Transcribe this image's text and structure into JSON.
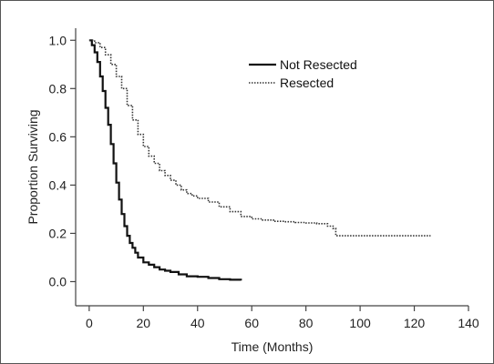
{
  "chart_data": {
    "type": "line",
    "title": "",
    "xlabel": "Time (Months)",
    "ylabel": "Proportion Surviving",
    "xlim": [
      -5,
      140
    ],
    "ylim": [
      -0.1,
      1.05
    ],
    "xticks": [
      0,
      20,
      40,
      60,
      80,
      100,
      120,
      140
    ],
    "yticks": [
      0.0,
      0.2,
      0.4,
      0.6,
      0.8,
      1.0
    ],
    "xtick_labels": [
      "0",
      "20",
      "40",
      "60",
      "80",
      "100",
      "120",
      "140"
    ],
    "ytick_labels": [
      "0.0",
      "0.2",
      "0.4",
      "0.6",
      "0.8",
      "1.0"
    ],
    "grid": false,
    "legend_position": "top-right",
    "series": [
      {
        "name": "Not Resected",
        "style": "solid",
        "color": "#111111",
        "x": [
          0,
          1,
          2,
          3,
          4,
          5,
          6,
          7,
          8,
          9,
          10,
          11,
          12,
          13,
          14,
          15,
          16,
          17,
          18,
          20,
          22,
          24,
          26,
          28,
          30,
          33,
          36,
          40,
          44,
          48,
          52,
          56
        ],
        "y": [
          1.0,
          0.98,
          0.95,
          0.91,
          0.85,
          0.79,
          0.72,
          0.65,
          0.57,
          0.49,
          0.41,
          0.34,
          0.28,
          0.23,
          0.19,
          0.16,
          0.14,
          0.12,
          0.1,
          0.08,
          0.07,
          0.06,
          0.05,
          0.045,
          0.04,
          0.03,
          0.022,
          0.02,
          0.015,
          0.01,
          0.008,
          0.005
        ]
      },
      {
        "name": "Resected",
        "style": "dotted",
        "color": "#333333",
        "x": [
          0,
          2,
          4,
          6,
          8,
          10,
          12,
          14,
          16,
          18,
          20,
          22,
          24,
          26,
          28,
          30,
          32,
          34,
          36,
          38,
          40,
          44,
          48,
          52,
          56,
          60,
          64,
          68,
          72,
          76,
          80,
          84,
          88,
          90,
          91,
          100,
          110,
          126
        ],
        "y": [
          1.0,
          0.99,
          0.97,
          0.94,
          0.9,
          0.85,
          0.8,
          0.73,
          0.67,
          0.61,
          0.56,
          0.52,
          0.49,
          0.46,
          0.44,
          0.42,
          0.4,
          0.38,
          0.365,
          0.355,
          0.345,
          0.33,
          0.31,
          0.29,
          0.27,
          0.26,
          0.255,
          0.25,
          0.248,
          0.245,
          0.243,
          0.24,
          0.23,
          0.22,
          0.19,
          0.19,
          0.19,
          0.19
        ]
      }
    ]
  }
}
